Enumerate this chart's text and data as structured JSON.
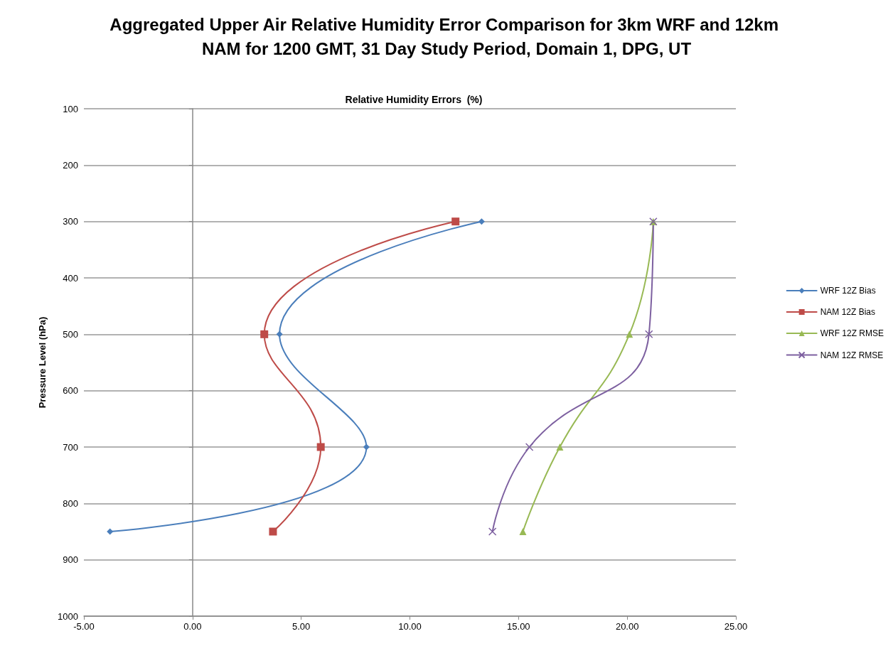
{
  "chart_data": {
    "type": "line",
    "title": "Aggregated Upper Air Relative Humidity Error Comparison for 3km WRF and 12km NAM for 1200 GMT, 31 Day Study Period, Domain 1, DPG, UT",
    "xlabel": "Relative Humidity Errors  (%)",
    "ylabel": "Pressure Level (hPa)",
    "xlim": [
      -5,
      25
    ],
    "xticks": [
      {
        "value": -5,
        "label": "-5.00"
      },
      {
        "value": 0,
        "label": "0.00"
      },
      {
        "value": 5,
        "label": "5.00"
      },
      {
        "value": 10,
        "label": "10.00"
      },
      {
        "value": 15,
        "label": "15.00"
      },
      {
        "value": 20,
        "label": "20.00"
      },
      {
        "value": 25,
        "label": "25.00"
      }
    ],
    "ylim": [
      1000,
      100
    ],
    "yticks": [
      100,
      200,
      300,
      400,
      500,
      600,
      700,
      800,
      900,
      1000
    ],
    "grid": "y",
    "legend": "right",
    "series": [
      {
        "name": "WRF 12Z Bias",
        "color": "#4a7ebb",
        "marker": "diamond",
        "x": [
          13.3,
          4.0,
          8.0,
          -3.8
        ],
        "values": [
          300,
          500,
          700,
          850
        ]
      },
      {
        "name": "NAM 12Z Bias",
        "color": "#be4b48",
        "marker": "square",
        "x": [
          12.1,
          3.3,
          5.9,
          3.7
        ],
        "values": [
          300,
          500,
          700,
          850
        ]
      },
      {
        "name": "WRF 12Z RMSE",
        "color": "#98b954",
        "marker": "triangle",
        "x": [
          21.2,
          20.1,
          16.9,
          15.2
        ],
        "values": [
          300,
          500,
          700,
          850
        ]
      },
      {
        "name": "NAM 12Z RMSE",
        "color": "#7d60a0",
        "marker": "cross",
        "x": [
          21.2,
          21.0,
          15.5,
          13.8
        ],
        "values": [
          300,
          500,
          700,
          850
        ]
      }
    ]
  }
}
